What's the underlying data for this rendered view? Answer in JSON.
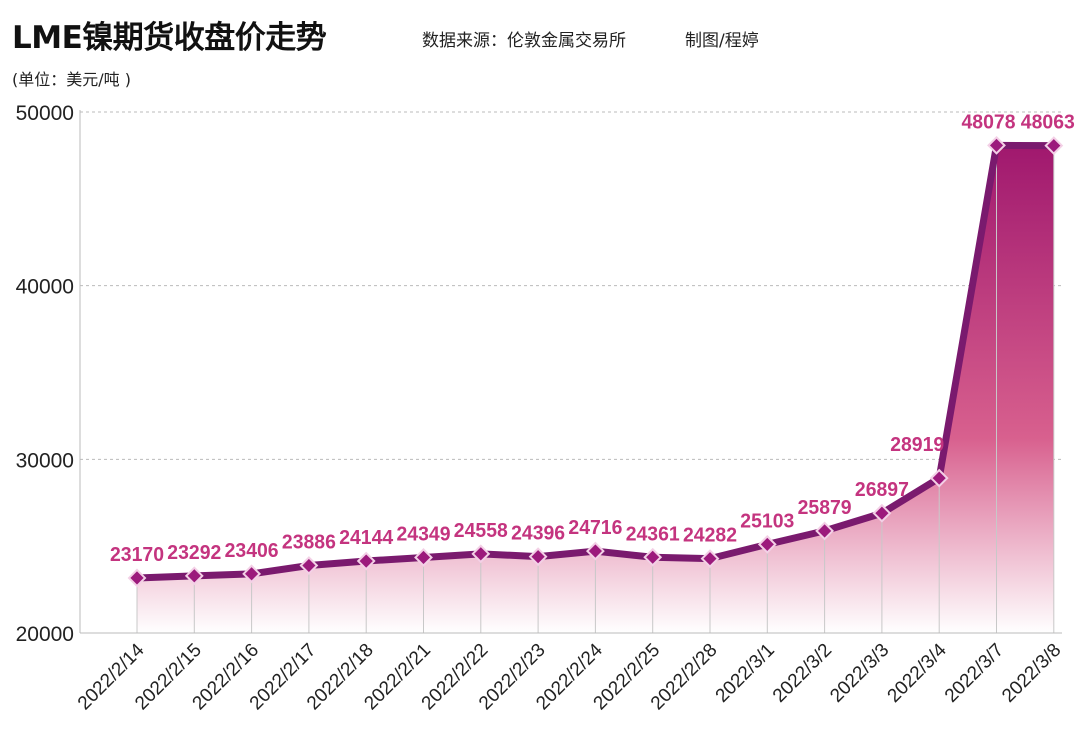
{
  "header": {
    "title": "LME镍期货收盘价走势",
    "source": "数据来源：伦敦金属交易所",
    "author": "制图/程婷",
    "unit": "(单位：美元/吨 )"
  },
  "chart_data": {
    "type": "area",
    "title": "LME镍期货收盘价走势",
    "xlabel": "",
    "ylabel": "(单位：美元/吨 )",
    "ylim": [
      20000,
      50000
    ],
    "yticks": [
      20000,
      30000,
      40000,
      50000
    ],
    "grid": true,
    "categories": [
      "2022/2/14",
      "2022/2/15",
      "2022/2/16",
      "2022/2/17",
      "2022/2/18",
      "2022/2/21",
      "2022/2/22",
      "2022/2/23",
      "2022/2/24",
      "2022/2/25",
      "2022/2/28",
      "2022/3/1",
      "2022/3/2",
      "2022/3/3",
      "2022/3/4",
      "2022/3/7",
      "2022/3/8"
    ],
    "values": [
      23170,
      23292,
      23406,
      23886,
      24144,
      24349,
      24558,
      24396,
      24716,
      24361,
      24282,
      25103,
      25879,
      26897,
      28919,
      48078,
      48063
    ],
    "colors": {
      "line": "#7a1a6e",
      "marker": "#9c1a7c",
      "label": "#c4347f",
      "fill_top": "#a0186e",
      "fill_bottom": "#ffffff"
    }
  }
}
